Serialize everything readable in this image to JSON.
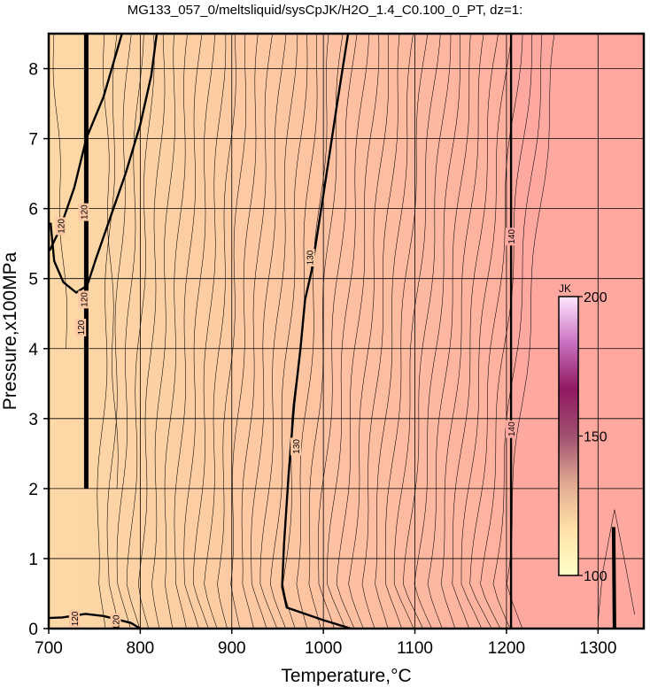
{
  "chart_data": {
    "type": "heatmap",
    "title": "MG133_057_0/meltsliquid/sysCpJK/H2O_1.4_C0.100_0_PT, dz=1:",
    "xlabel": "Temperature,°C",
    "ylabel": "Pressure,x100MPa",
    "xlim": [
      700,
      1350
    ],
    "ylim": [
      0,
      8.5
    ],
    "x_ticks": [
      "700",
      "800",
      "900",
      "1000",
      "1100",
      "1200",
      "1300"
    ],
    "y_ticks": [
      "0",
      "1",
      "2",
      "3",
      "4",
      "5",
      "6",
      "7",
      "8"
    ],
    "grid": true,
    "colorbar": {
      "unit": "JK",
      "range": [
        100,
        200
      ],
      "tick_labels": [
        "200",
        "150",
        "100"
      ],
      "tick_values": [
        200,
        150,
        100
      ],
      "placement": "right-inside",
      "colors": [
        "#ffffc8",
        "#ffe0a8",
        "#e0a890",
        "#a05070",
        "#901860",
        "#c870c0",
        "#ffe8ff"
      ]
    },
    "field_colors": {
      "low": "#fdd9a6",
      "mid": "#fdc7a2",
      "high": "#ffb0a0",
      "max": "#fea8a0"
    },
    "regions": [
      {
        "from_x": 700,
        "to_x": 1205,
        "value_from": 120,
        "value_to": 139
      },
      {
        "from_x": 1205,
        "to_x": 1350,
        "value_from": 141,
        "value_to": 143
      }
    ],
    "contour_labels": [
      {
        "text": "120",
        "x": 713,
        "y": 5.75
      },
      {
        "text": "120",
        "x": 738,
        "y": 5.95
      },
      {
        "text": "120",
        "x": 738,
        "y": 4.7
      },
      {
        "text": "120",
        "x": 735,
        "y": 4.3
      },
      {
        "text": "120",
        "x": 728,
        "y": 0.14
      },
      {
        "text": "120",
        "x": 773,
        "y": 0.09
      },
      {
        "text": "130",
        "x": 985,
        "y": 5.3
      },
      {
        "text": "130",
        "x": 970,
        "y": 2.6
      },
      {
        "text": "140",
        "x": 1205,
        "y": 5.6
      },
      {
        "text": "140",
        "x": 1205,
        "y": 2.85
      }
    ],
    "contours": [
      {
        "level": 120,
        "bold": true,
        "points": [
          [
            741,
            8.5
          ],
          [
            741,
            2.0
          ]
        ]
      },
      {
        "level": 120,
        "bold": true,
        "points": [
          [
            701,
            5.4
          ],
          [
            712,
            5.7
          ],
          [
            728,
            6.3
          ],
          [
            741,
            7.0
          ],
          [
            760,
            7.6
          ],
          [
            780,
            8.5
          ]
        ]
      },
      {
        "level": 120,
        "bold": true,
        "points": [
          [
            818,
            8.5
          ],
          [
            812,
            7.9
          ],
          [
            800,
            7.2
          ],
          [
            784,
            6.5
          ],
          [
            768,
            5.9
          ],
          [
            752,
            5.3
          ],
          [
            742,
            4.9
          ],
          [
            730,
            4.8
          ],
          [
            716,
            4.95
          ],
          [
            706,
            5.25
          ],
          [
            702,
            5.8
          ]
        ]
      },
      {
        "level": 120,
        "bold": true,
        "points": [
          [
            700,
            0.15
          ],
          [
            715,
            0.16
          ],
          [
            740,
            0.21
          ],
          [
            760,
            0.18
          ],
          [
            790,
            0.08
          ],
          [
            800,
            0.0
          ]
        ]
      },
      {
        "level": 130,
        "bold": true,
        "points": [
          [
            1027,
            8.5
          ],
          [
            1015,
            7.5
          ],
          [
            1000,
            6.2
          ],
          [
            987,
            5.1
          ],
          [
            980,
            4.7
          ],
          [
            975,
            4.0
          ],
          [
            968,
            3.2
          ],
          [
            962,
            2.2
          ],
          [
            957,
            1.2
          ],
          [
            955,
            0.6
          ],
          [
            960,
            0.3
          ],
          [
            1000,
            0.12
          ],
          [
            1030,
            0.0
          ]
        ]
      },
      {
        "level": 140,
        "bold": true,
        "points": [
          [
            1205,
            8.5
          ],
          [
            1205,
            0.0
          ]
        ]
      },
      {
        "level": 142,
        "bold": true,
        "points": [
          [
            1317,
            1.45
          ],
          [
            1318,
            0.0
          ]
        ]
      }
    ]
  }
}
